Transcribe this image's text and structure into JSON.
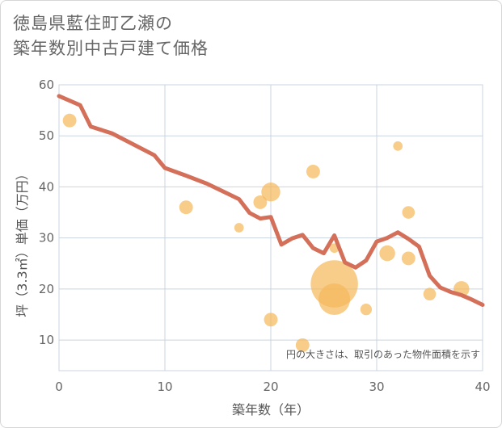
{
  "title_lines": [
    "徳島県藍住町乙瀬の",
    "築年数別中古戸建て価格"
  ],
  "note": "円の大きさは、取引のあった物件面積を示す",
  "colors": {
    "line": "#d4705a",
    "bubble": "#f5b95c",
    "grid": "#c9d4df",
    "plot_bg": "#ffffff"
  },
  "chart_data": {
    "type": "scatter",
    "xlabel": "築年数（年）",
    "ylabel": "坪（3.3㎡）単価（万円）",
    "xlim": [
      0,
      40
    ],
    "ylim": [
      4,
      60
    ],
    "xticks": [
      0,
      10,
      20,
      30,
      40
    ],
    "yticks": [
      10,
      20,
      30,
      40,
      50,
      60
    ],
    "grid": true,
    "trend_line": [
      [
        0,
        57.8
      ],
      [
        2,
        56.0
      ],
      [
        3,
        51.8
      ],
      [
        5,
        50.5
      ],
      [
        9,
        46.2
      ],
      [
        10,
        43.7
      ],
      [
        12,
        42.2
      ],
      [
        14,
        40.6
      ],
      [
        16,
        38.6
      ],
      [
        17,
        37.6
      ],
      [
        18,
        34.9
      ],
      [
        19,
        33.8
      ],
      [
        20,
        34.1
      ],
      [
        21,
        28.7
      ],
      [
        22,
        29.9
      ],
      [
        23,
        30.6
      ],
      [
        24,
        28.0
      ],
      [
        25,
        27.0
      ],
      [
        26,
        30.5
      ],
      [
        27,
        25.2
      ],
      [
        28,
        24.2
      ],
      [
        29,
        25.6
      ],
      [
        30,
        29.3
      ],
      [
        31,
        30.0
      ],
      [
        32,
        31.1
      ],
      [
        33,
        29.8
      ],
      [
        34,
        28.3
      ],
      [
        35,
        22.6
      ],
      [
        36,
        20.3
      ],
      [
        37,
        19.4
      ],
      [
        38,
        18.8
      ],
      [
        39,
        17.9
      ],
      [
        40,
        16.9
      ]
    ],
    "points": [
      {
        "x": 1,
        "y": 53,
        "size": 1.3
      },
      {
        "x": 12,
        "y": 36,
        "size": 1.3
      },
      {
        "x": 17,
        "y": 32,
        "size": 0.9
      },
      {
        "x": 19,
        "y": 37,
        "size": 1.3
      },
      {
        "x": 20,
        "y": 39,
        "size": 1.8
      },
      {
        "x": 20,
        "y": 14,
        "size": 1.3
      },
      {
        "x": 23,
        "y": 9,
        "size": 1.3
      },
      {
        "x": 24,
        "y": 43,
        "size": 1.3
      },
      {
        "x": 26,
        "y": 28,
        "size": 0.9
      },
      {
        "x": 26,
        "y": 21,
        "size": 4.5
      },
      {
        "x": 26,
        "y": 18,
        "size": 3.0
      },
      {
        "x": 29,
        "y": 16,
        "size": 1.1
      },
      {
        "x": 31,
        "y": 27,
        "size": 1.5
      },
      {
        "x": 32,
        "y": 48,
        "size": 0.9
      },
      {
        "x": 33,
        "y": 35,
        "size": 1.2
      },
      {
        "x": 33,
        "y": 26,
        "size": 1.3
      },
      {
        "x": 35,
        "y": 19,
        "size": 1.2
      },
      {
        "x": 38,
        "y": 20,
        "size": 1.5
      }
    ]
  }
}
